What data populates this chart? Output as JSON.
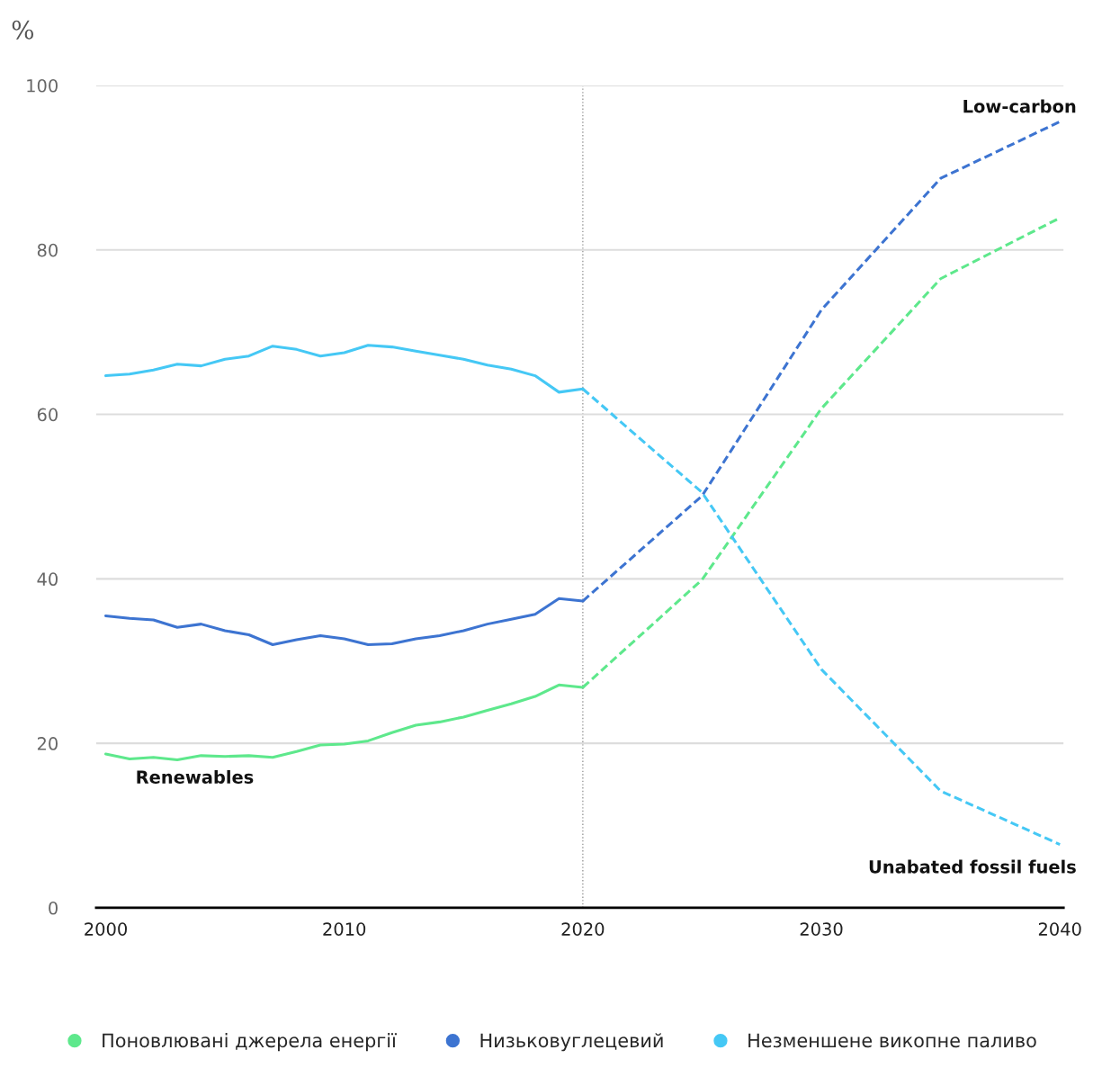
{
  "chart_data": {
    "type": "line",
    "ylabel": "%",
    "xlim": [
      1999.6,
      2040.15
    ],
    "ylim": [
      0,
      100
    ],
    "xticks": [
      2000,
      2010,
      2020,
      2030,
      2040
    ],
    "yticks": [
      0,
      20,
      40,
      60,
      80,
      100
    ],
    "grid": "y",
    "legend": "bottom",
    "marker": "none",
    "ref_lines": [
      {
        "axis": "x",
        "value": 2020,
        "color": "#999999",
        "line_style": "dotted"
      }
    ],
    "annotations": [
      "Low-carbon",
      "Renewables",
      "Unabated fossil fuels"
    ],
    "series": [
      {
        "name": "Поновлювані джерела енергії",
        "color": "#5ee88c",
        "line_style": "solid",
        "x": [
          2000,
          2001,
          2002,
          2003,
          2004,
          2005,
          2006,
          2007,
          2008,
          2009,
          2010,
          2011,
          2012,
          2013,
          2014,
          2015,
          2016,
          2017,
          2018,
          2019,
          2020
        ],
        "values": [
          18.7,
          18.1,
          18.3,
          18.0,
          18.5,
          18.4,
          18.5,
          18.3,
          19.0,
          19.8,
          19.9,
          20.3,
          21.3,
          22.2,
          22.6,
          23.2,
          24.0,
          24.8,
          25.7,
          27.1,
          26.8
        ]
      },
      {
        "name": "Низьковуглецевий",
        "color": "#3d74d1",
        "line_style": "solid",
        "x": [
          2000,
          2001,
          2002,
          2003,
          2004,
          2005,
          2006,
          2007,
          2008,
          2009,
          2010,
          2011,
          2012,
          2013,
          2014,
          2015,
          2016,
          2017,
          2018,
          2019,
          2020
        ],
        "values": [
          35.5,
          35.2,
          35.0,
          34.1,
          34.5,
          33.7,
          33.2,
          32.0,
          32.6,
          33.1,
          32.7,
          32.0,
          32.1,
          32.7,
          33.1,
          33.7,
          34.5,
          35.1,
          35.7,
          37.6,
          37.3
        ]
      },
      {
        "name": "Незменшене викопне паливо",
        "color": "#45c8f5",
        "line_style": "solid",
        "x": [
          2000,
          2001,
          2002,
          2003,
          2004,
          2005,
          2006,
          2007,
          2008,
          2009,
          2010,
          2011,
          2012,
          2013,
          2014,
          2015,
          2016,
          2017,
          2018,
          2019,
          2020
        ],
        "values": [
          64.7,
          64.9,
          65.4,
          66.1,
          65.9,
          66.7,
          67.1,
          68.3,
          67.9,
          67.1,
          67.5,
          68.4,
          68.2,
          67.7,
          67.2,
          66.7,
          66.0,
          65.5,
          64.7,
          62.7,
          63.1
        ]
      },
      {
        "color": "#5ee88c",
        "line_style": "dashed",
        "x": [
          2020,
          2025,
          2030,
          2035,
          2040
        ],
        "values": [
          26.8,
          39.9,
          60.7,
          76.5,
          83.9
        ]
      },
      {
        "color": "#3d74d1",
        "line_style": "dashed",
        "x": [
          2020,
          2025,
          2030,
          2035,
          2040
        ],
        "values": [
          37.3,
          50.1,
          72.7,
          88.7,
          95.6
        ]
      },
      {
        "color": "#45c8f5",
        "line_style": "dashed",
        "x": [
          2020,
          2025,
          2030,
          2035,
          2040
        ],
        "values": [
          63.1,
          50.5,
          29.0,
          14.2,
          7.7
        ]
      }
    ]
  }
}
